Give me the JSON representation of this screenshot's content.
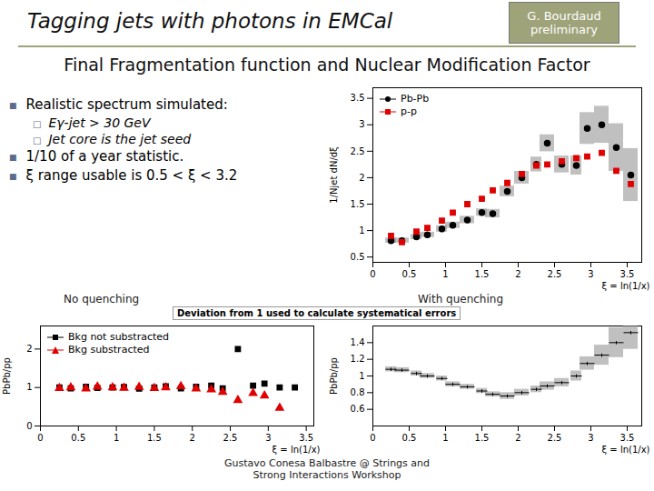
{
  "slide": {
    "title": "Tagging jets with photons in EMCal",
    "badge": "G. Bourdaud preliminary",
    "subtitle": "Final Fragmentation function and Nuclear Modification Factor",
    "bullets": [
      {
        "text": "Realistic spectrum simulated:",
        "sub": [
          "Eγ-jet > 30 GeV",
          "Jet core is the jet seed"
        ]
      },
      {
        "text": "1/10 of a year statistic.",
        "sub": []
      },
      {
        "text": "ξ range usable is 0.5 < ξ < 3.2",
        "sub": []
      }
    ],
    "footer": "Gustavo Conesa Balbastre @ Strings and Strong Interactions Workshop"
  },
  "chart_data": [
    {
      "type": "scatter",
      "ylabel": "1/Njet dN/dξ",
      "xlabel": "ξ = ln(1/x)",
      "legend": "top-left",
      "x": [
        0.25,
        0.4,
        0.6,
        0.75,
        0.95,
        1.1,
        1.3,
        1.5,
        1.65,
        1.85,
        2.05,
        2.25,
        2.4,
        2.6,
        2.8,
        2.95,
        3.15,
        3.35,
        3.55
      ],
      "xlim": [
        0,
        3.7
      ],
      "xticks": [
        0,
        0.5,
        1,
        1.5,
        2,
        2.5,
        3,
        3.5
      ],
      "ylim": [
        0.4,
        3.7
      ],
      "yticks": [
        0.5,
        1,
        1.5,
        2,
        2.5,
        3,
        3.5
      ],
      "series": [
        {
          "name": "Pb-Pb",
          "color": "#000000",
          "marker": "circle",
          "values": [
            0.81,
            0.81,
            0.88,
            0.92,
            1.03,
            1.1,
            1.2,
            1.34,
            1.32,
            1.74,
            2.0,
            2.25,
            2.65,
            2.25,
            2.23,
            2.93,
            3.0,
            2.57,
            2.05
          ],
          "errors": [
            0.05,
            0.05,
            0.05,
            0.05,
            0.06,
            0.06,
            0.07,
            0.07,
            0.08,
            0.1,
            0.12,
            0.14,
            0.16,
            0.16,
            0.18,
            0.3,
            0.35,
            0.45,
            0.5
          ]
        },
        {
          "name": "p-p",
          "color": "#e00000",
          "marker": "square",
          "values": [
            0.9,
            0.78,
            0.98,
            1.05,
            1.19,
            1.34,
            1.5,
            1.6,
            1.76,
            1.9,
            2.07,
            2.23,
            2.25,
            2.31,
            2.37,
            2.4,
            2.47,
            2.13,
            1.88
          ]
        }
      ]
    },
    {
      "type": "scatter",
      "title": "No quenching",
      "ylabel": "PbPb/pp",
      "xlabel": "ξ = ln(1/x)",
      "legend": "top-left",
      "x": [
        0.25,
        0.4,
        0.6,
        0.75,
        0.95,
        1.1,
        1.3,
        1.5,
        1.65,
        1.85,
        2.05,
        2.25,
        2.4,
        2.6,
        2.8,
        2.95,
        3.15,
        3.35,
        3.55
      ],
      "xlim": [
        0,
        3.6
      ],
      "xticks": [
        0,
        0.5,
        1,
        1.5,
        2,
        2.5,
        3,
        3.5
      ],
      "ylim": [
        0,
        2.6
      ],
      "yticks": [
        0,
        1,
        2
      ],
      "series": [
        {
          "name": "Bkg not substracted",
          "color": "#000000",
          "marker": "square",
          "values": [
            1.0,
            0.98,
            1.02,
            0.99,
            1.0,
            1.01,
            0.97,
            1.0,
            1.03,
            0.98,
            1.02,
            1.05,
            0.98,
            2.0,
            1.05,
            1.1,
            1.0,
            1.0,
            null
          ]
        },
        {
          "name": "Bkg substracted",
          "color": "#e00000",
          "marker": "triangle",
          "values": [
            0.98,
            1.0,
            0.97,
            1.02,
            1.0,
            0.99,
            1.01,
            0.98,
            1.0,
            1.03,
            0.97,
            0.95,
            0.88,
            0.67,
            0.85,
            0.79,
            0.47,
            null,
            null
          ]
        }
      ]
    },
    {
      "type": "scatter",
      "title": "With quenching",
      "annotation": "Deviation from 1 used to calculate systematical errors",
      "ylabel": "PbPb/pp",
      "xlabel": "ξ = ln(1/x)",
      "x": [
        0.25,
        0.4,
        0.6,
        0.75,
        0.95,
        1.1,
        1.3,
        1.5,
        1.65,
        1.85,
        2.05,
        2.25,
        2.4,
        2.6,
        2.8,
        2.95,
        3.15,
        3.35,
        3.55
      ],
      "xlim": [
        0,
        3.7
      ],
      "xticks": [
        0,
        0.5,
        1,
        1.5,
        2,
        2.5,
        3,
        3.5
      ],
      "ylim": [
        0.4,
        1.6
      ],
      "yticks": [
        0.6,
        0.8,
        1,
        1.2,
        1.4
      ],
      "series": [
        {
          "color": "#000000",
          "marker": "hbar",
          "values": [
            1.08,
            1.07,
            1.03,
            1.0,
            0.97,
            0.9,
            0.87,
            0.82,
            0.78,
            0.76,
            0.8,
            0.84,
            0.88,
            0.92,
            1.0,
            1.15,
            1.25,
            1.4,
            1.52
          ],
          "errors": [
            0.03,
            0.03,
            0.03,
            0.03,
            0.03,
            0.03,
            0.03,
            0.03,
            0.03,
            0.04,
            0.04,
            0.04,
            0.05,
            0.05,
            0.06,
            0.08,
            0.12,
            0.18,
            0.2
          ]
        }
      ]
    }
  ]
}
